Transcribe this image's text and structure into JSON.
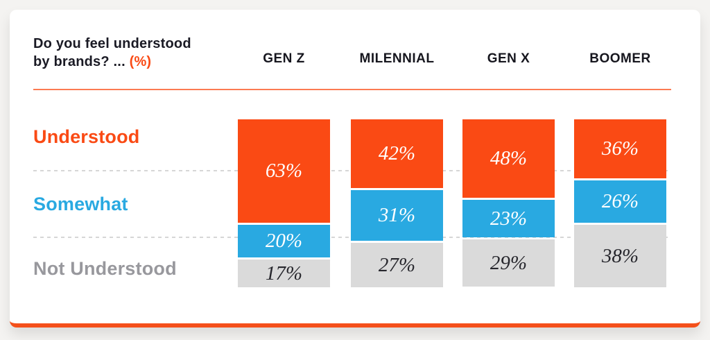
{
  "header": {
    "title_line1": "Do you feel understood",
    "title_line2": "by brands? ...",
    "title_unit": "(%)"
  },
  "colors": {
    "accent_orange": "#fa4a14",
    "accent_blue": "#29a9e1",
    "bar_gray": "#dadada",
    "label_gray": "#98989d",
    "divider_orange": "#fc7a52",
    "card_bottom_border": "#f4501b",
    "page_background": "#f4f3f1",
    "card_background": "#ffffff",
    "heading_text": "#1a1a24"
  },
  "chart_data": {
    "type": "bar",
    "subtype": "stacked-100-percent-columns",
    "title": "Do you feel understood by brands? ... (%)",
    "unit": "%",
    "categories": [
      "GEN Z",
      "MILENNIAL",
      "GEN X",
      "BOOMER"
    ],
    "series": [
      {
        "name": "Understood",
        "color": "#fa4a14",
        "text_color": "#ffffff",
        "values": [
          63,
          42,
          48,
          36
        ]
      },
      {
        "name": "Somewhat",
        "color": "#29a9e1",
        "text_color": "#ffffff",
        "values": [
          20,
          31,
          23,
          26
        ]
      },
      {
        "name": "Not Understood",
        "color": "#dadada",
        "text_color": "#26262c",
        "values": [
          17,
          27,
          29,
          38
        ]
      }
    ],
    "column_totals": [
      100,
      100,
      100,
      100
    ],
    "legend_position": "left-row-labels",
    "grid": "dashed-row-separators"
  }
}
